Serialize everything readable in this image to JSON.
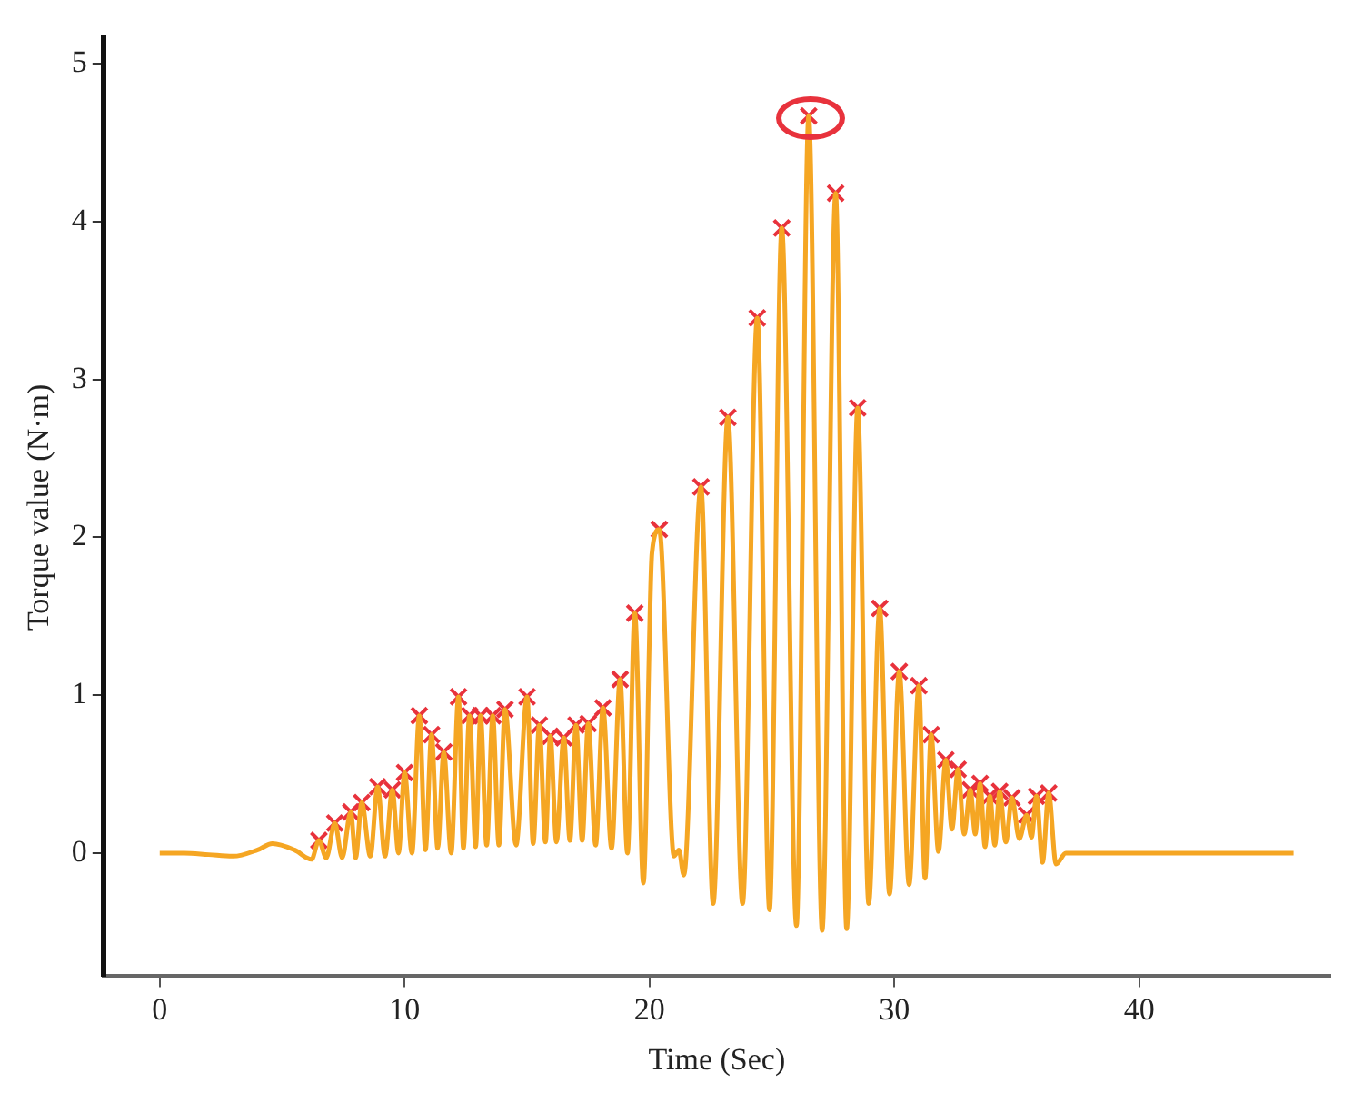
{
  "chart_data": {
    "type": "line",
    "xlabel": "Time (Sec)",
    "ylabel": "Torque value (N·m)",
    "xlim": [
      -2.3,
      47.8
    ],
    "ylim": [
      -0.78,
      5.16
    ],
    "xticks": [
      0,
      10,
      20,
      30,
      40
    ],
    "yticks": [
      0,
      1,
      2,
      3,
      4,
      5
    ],
    "grid": false,
    "legend": false,
    "series": [
      {
        "color": "#f5a623",
        "marker": "none",
        "x": [
          0,
          1,
          2,
          3,
          4,
          4.6,
          5.5,
          6.2,
          6.5,
          6.8,
          7.15,
          7.45,
          7.8,
          8.0,
          8.25,
          8.6,
          8.9,
          9.2,
          9.5,
          9.75,
          10.0,
          10.3,
          10.6,
          10.85,
          11.1,
          11.35,
          11.6,
          11.9,
          12.2,
          12.4,
          12.65,
          12.9,
          13.1,
          13.35,
          13.6,
          13.85,
          14.1,
          14.55,
          15.0,
          15.25,
          15.5,
          15.75,
          15.95,
          16.2,
          16.5,
          16.75,
          17.0,
          17.25,
          17.5,
          17.8,
          18.1,
          18.45,
          18.8,
          19.1,
          19.4,
          19.75,
          20.1,
          20.4,
          21.0,
          21.2,
          21.4,
          22.1,
          22.6,
          23.2,
          23.8,
          24.4,
          24.9,
          25.4,
          26.0,
          26.5,
          27.05,
          27.6,
          28.05,
          28.5,
          28.95,
          29.4,
          29.8,
          30.2,
          30.6,
          31.0,
          31.25,
          31.5,
          31.8,
          32.1,
          32.35,
          32.6,
          32.85,
          33.1,
          33.3,
          33.5,
          33.7,
          33.9,
          34.1,
          34.3,
          34.55,
          34.8,
          35.1,
          35.4,
          35.6,
          35.8,
          36.05,
          36.3,
          36.6,
          37.0,
          46.3
        ],
        "values": [
          0,
          0,
          -0.01,
          -0.02,
          0.02,
          0.06,
          0.02,
          -0.04,
          0.08,
          -0.03,
          0.19,
          -0.03,
          0.26,
          -0.03,
          0.32,
          -0.02,
          0.42,
          -0.02,
          0.4,
          0,
          0.51,
          0,
          0.87,
          0.02,
          0.75,
          0.03,
          0.64,
          0,
          0.99,
          0.03,
          0.87,
          0.04,
          0.87,
          0.05,
          0.87,
          0.05,
          0.91,
          0.05,
          0.99,
          0.06,
          0.81,
          0.07,
          0.74,
          0.07,
          0.73,
          0.08,
          0.81,
          0.08,
          0.82,
          0.05,
          0.92,
          0.03,
          1.1,
          0,
          1.52,
          -0.19,
          1.9,
          2.05,
          -0.02,
          0.02,
          -0.14,
          2.32,
          -0.32,
          2.76,
          -0.32,
          3.39,
          -0.36,
          3.96,
          -0.46,
          4.67,
          -0.49,
          4.18,
          -0.48,
          2.82,
          -0.32,
          1.55,
          -0.26,
          1.15,
          -0.2,
          1.06,
          -0.16,
          0.75,
          0.01,
          0.59,
          0.15,
          0.53,
          0.12,
          0.4,
          0.12,
          0.44,
          0.04,
          0.36,
          0.05,
          0.39,
          0.07,
          0.35,
          0.09,
          0.24,
          0.1,
          0.36,
          -0.06,
          0.38,
          -0.07,
          0,
          0
        ]
      },
      {
        "type": "scatter",
        "color": "#e8323c",
        "marker": "cross",
        "x": [
          6.5,
          7.15,
          7.8,
          8.25,
          8.9,
          9.5,
          10.0,
          10.6,
          11.1,
          11.6,
          12.2,
          12.65,
          13.1,
          13.6,
          14.1,
          15.0,
          15.5,
          15.95,
          16.5,
          17.0,
          17.5,
          18.1,
          18.8,
          19.4,
          20.4,
          22.1,
          23.2,
          24.4,
          25.4,
          26.5,
          27.6,
          28.5,
          29.4,
          30.2,
          31.0,
          31.5,
          32.1,
          32.6,
          33.1,
          33.5,
          33.9,
          34.3,
          34.8,
          35.4,
          35.8,
          36.3
        ],
        "values": [
          0.08,
          0.19,
          0.26,
          0.32,
          0.42,
          0.4,
          0.51,
          0.87,
          0.75,
          0.64,
          0.99,
          0.87,
          0.87,
          0.87,
          0.91,
          0.99,
          0.81,
          0.74,
          0.73,
          0.81,
          0.82,
          0.92,
          1.1,
          1.52,
          2.05,
          2.32,
          2.76,
          3.39,
          3.96,
          4.67,
          4.18,
          2.82,
          1.55,
          1.15,
          1.06,
          0.75,
          0.59,
          0.53,
          0.4,
          0.44,
          0.36,
          0.39,
          0.35,
          0.24,
          0.36,
          0.38
        ]
      }
    ]
  }
}
